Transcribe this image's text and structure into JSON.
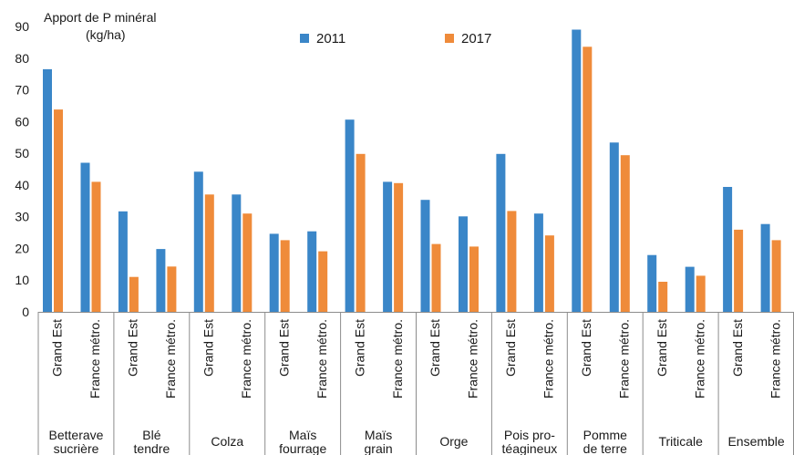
{
  "chart_data": {
    "type": "bar",
    "title": "Apport de P minéral",
    "ylabel_unit": "(kg/ha)",
    "ylim": [
      0,
      90
    ],
    "yticks": [
      0,
      10,
      20,
      30,
      40,
      50,
      60,
      70,
      80,
      90
    ],
    "grid": false,
    "legend_position": "top",
    "colors": {
      "2011": "#3a86c8",
      "2017": "#ef8b3a"
    },
    "region_labels": [
      "Grand Est",
      "France métro."
    ],
    "groups": [
      {
        "lines": [
          "Betterave",
          "sucrière"
        ]
      },
      {
        "lines": [
          "Blé",
          "tendre"
        ]
      },
      {
        "lines": [
          "Colza"
        ]
      },
      {
        "lines": [
          "Maïs",
          "fourrage"
        ]
      },
      {
        "lines": [
          "Maïs",
          "grain"
        ]
      },
      {
        "lines": [
          "Orge"
        ]
      },
      {
        "lines": [
          "Pois pro-",
          "téagineux"
        ]
      },
      {
        "lines": [
          "Pomme",
          "de terre"
        ]
      },
      {
        "lines": [
          "Triticale"
        ]
      },
      {
        "lines": [
          "Ensemble"
        ]
      }
    ],
    "series": [
      {
        "name": "2011",
        "values": [
          76.5,
          47,
          31.7,
          19.8,
          44.2,
          37,
          24.6,
          25.4,
          60.6,
          41,
          35.3,
          30.1,
          49.8,
          31,
          89,
          53.4,
          17.9,
          14.2,
          39.4,
          27.7
        ]
      },
      {
        "name": "2017",
        "values": [
          63.8,
          41,
          11,
          14.3,
          37,
          31,
          22.6,
          19.1,
          49.8,
          40.6,
          21.4,
          20.6,
          31.8,
          24.1,
          83.6,
          49.4,
          9.5,
          11.4,
          25.9,
          22.6
        ]
      }
    ]
  }
}
